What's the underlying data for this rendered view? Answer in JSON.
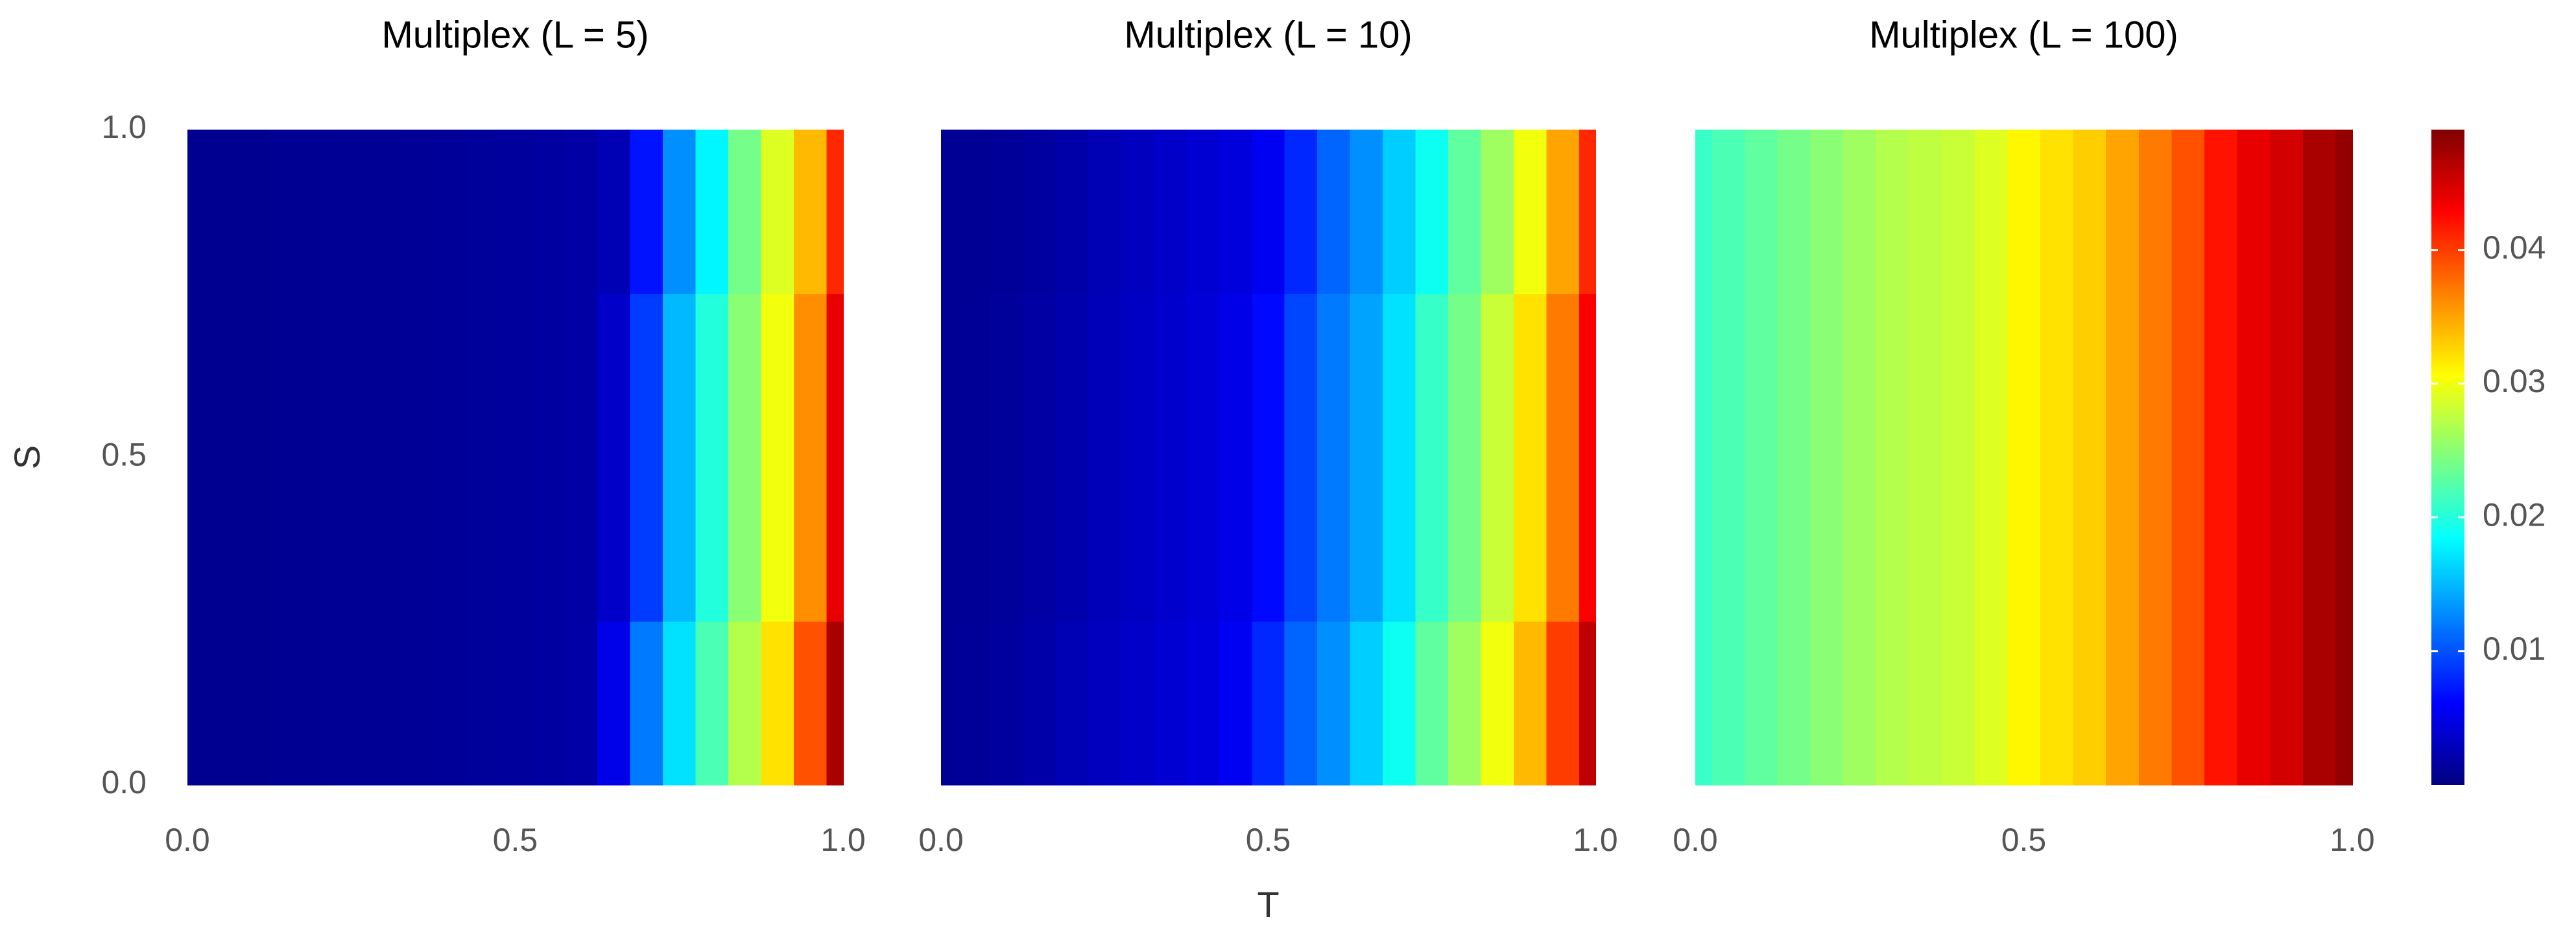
{
  "chart_data": [
    {
      "type": "heatmap",
      "title": "Multiplex (L = 5)",
      "ylabel": "S",
      "colormap": "jet",
      "x": [
        0,
        0.05,
        0.1,
        0.15,
        0.2,
        0.25,
        0.3,
        0.35,
        0.4,
        0.45,
        0.5,
        0.55,
        0.6,
        0.65,
        0.7,
        0.75,
        0.8,
        0.85,
        0.9,
        0.95,
        1
      ],
      "y": [
        0,
        0.5,
        1
      ],
      "z": [
        [
          0.0008,
          0.0008,
          0.0008,
          0.0009,
          0.0009,
          0.001,
          0.001,
          0.0011,
          0.0012,
          0.0013,
          0.0014,
          0.0016,
          0.0018,
          0.005,
          0.012,
          0.017,
          0.022,
          0.027,
          0.032,
          0.039,
          0.047
        ],
        [
          0.0008,
          0.0008,
          0.0008,
          0.0009,
          0.0009,
          0.001,
          0.001,
          0.0011,
          0.0012,
          0.0013,
          0.0014,
          0.0016,
          0.0018,
          0.0035,
          0.009,
          0.015,
          0.02,
          0.025,
          0.03,
          0.036,
          0.044
        ],
        [
          0.0008,
          0.0008,
          0.0008,
          0.0009,
          0.0009,
          0.001,
          0.001,
          0.0011,
          0.0012,
          0.0013,
          0.0014,
          0.0016,
          0.0018,
          0.0025,
          0.007,
          0.013,
          0.018,
          0.024,
          0.029,
          0.034,
          0.041
        ]
      ],
      "clim": [
        0,
        0.049
      ],
      "xlim": [
        0,
        1
      ],
      "ylim": [
        0,
        1
      ],
      "xticks": [
        {
          "value": 0,
          "label": "0.0"
        },
        {
          "value": 0.5,
          "label": "0.5"
        },
        {
          "value": 1,
          "label": "1.0"
        }
      ],
      "yticks": [
        {
          "value": 0,
          "label": "0.0"
        },
        {
          "value": 0.5,
          "label": "0.5"
        },
        {
          "value": 1,
          "label": "1.0"
        }
      ]
    },
    {
      "type": "heatmap",
      "title": "Multiplex (L = 10)",
      "xlabel": "T",
      "colormap": "jet",
      "x": [
        0,
        0.05,
        0.1,
        0.15,
        0.2,
        0.25,
        0.3,
        0.35,
        0.4,
        0.45,
        0.5,
        0.55,
        0.6,
        0.65,
        0.7,
        0.75,
        0.8,
        0.85,
        0.9,
        0.95,
        1
      ],
      "y": [
        0,
        0.5,
        1
      ],
      "z": [
        [
          0.001,
          0.0012,
          0.0015,
          0.002,
          0.0025,
          0.003,
          0.0035,
          0.004,
          0.0045,
          0.0055,
          0.008,
          0.011,
          0.013,
          0.016,
          0.019,
          0.023,
          0.026,
          0.03,
          0.034,
          0.04,
          0.046
        ],
        [
          0.001,
          0.0011,
          0.0013,
          0.0017,
          0.0022,
          0.0027,
          0.0032,
          0.0037,
          0.0042,
          0.005,
          0.0065,
          0.0095,
          0.012,
          0.014,
          0.017,
          0.021,
          0.024,
          0.028,
          0.032,
          0.037,
          0.043
        ],
        [
          0.001,
          0.001,
          0.0012,
          0.0015,
          0.002,
          0.0025,
          0.003,
          0.0035,
          0.004,
          0.0045,
          0.0055,
          0.008,
          0.011,
          0.013,
          0.016,
          0.019,
          0.023,
          0.026,
          0.03,
          0.035,
          0.041
        ]
      ],
      "clim": [
        0,
        0.049
      ],
      "xlim": [
        0,
        1
      ],
      "ylim": [
        0,
        1
      ],
      "xticks": [
        {
          "value": 0,
          "label": "0.0"
        },
        {
          "value": 0.5,
          "label": "0.5"
        },
        {
          "value": 1,
          "label": "1.0"
        }
      ]
    },
    {
      "type": "heatmap",
      "title": "Multiplex (L = 100)",
      "colormap": "jet",
      "x": [
        0,
        0.05,
        0.1,
        0.15,
        0.2,
        0.25,
        0.3,
        0.35,
        0.4,
        0.45,
        0.5,
        0.55,
        0.6,
        0.65,
        0.7,
        0.75,
        0.8,
        0.85,
        0.9,
        0.95,
        1
      ],
      "y": [
        0,
        0.5,
        1
      ],
      "z": [
        [
          0.021,
          0.022,
          0.023,
          0.024,
          0.025,
          0.026,
          0.027,
          0.0275,
          0.028,
          0.029,
          0.031,
          0.032,
          0.033,
          0.035,
          0.037,
          0.039,
          0.042,
          0.044,
          0.045,
          0.047,
          0.048
        ],
        [
          0.021,
          0.022,
          0.023,
          0.024,
          0.025,
          0.026,
          0.027,
          0.0275,
          0.028,
          0.029,
          0.031,
          0.032,
          0.033,
          0.035,
          0.037,
          0.039,
          0.042,
          0.044,
          0.045,
          0.047,
          0.048
        ],
        [
          0.021,
          0.022,
          0.023,
          0.024,
          0.025,
          0.026,
          0.027,
          0.0275,
          0.028,
          0.029,
          0.031,
          0.032,
          0.033,
          0.035,
          0.037,
          0.039,
          0.042,
          0.044,
          0.045,
          0.047,
          0.048
        ]
      ],
      "clim": [
        0,
        0.049
      ],
      "xlim": [
        0,
        1
      ],
      "ylim": [
        0,
        1
      ],
      "xticks": [
        {
          "value": 0,
          "label": "0.0"
        },
        {
          "value": 0.5,
          "label": "0.5"
        },
        {
          "value": 1,
          "label": "1.0"
        }
      ],
      "colorbar_ticks": [
        0.01,
        0.02,
        0.03,
        0.04
      ]
    }
  ]
}
